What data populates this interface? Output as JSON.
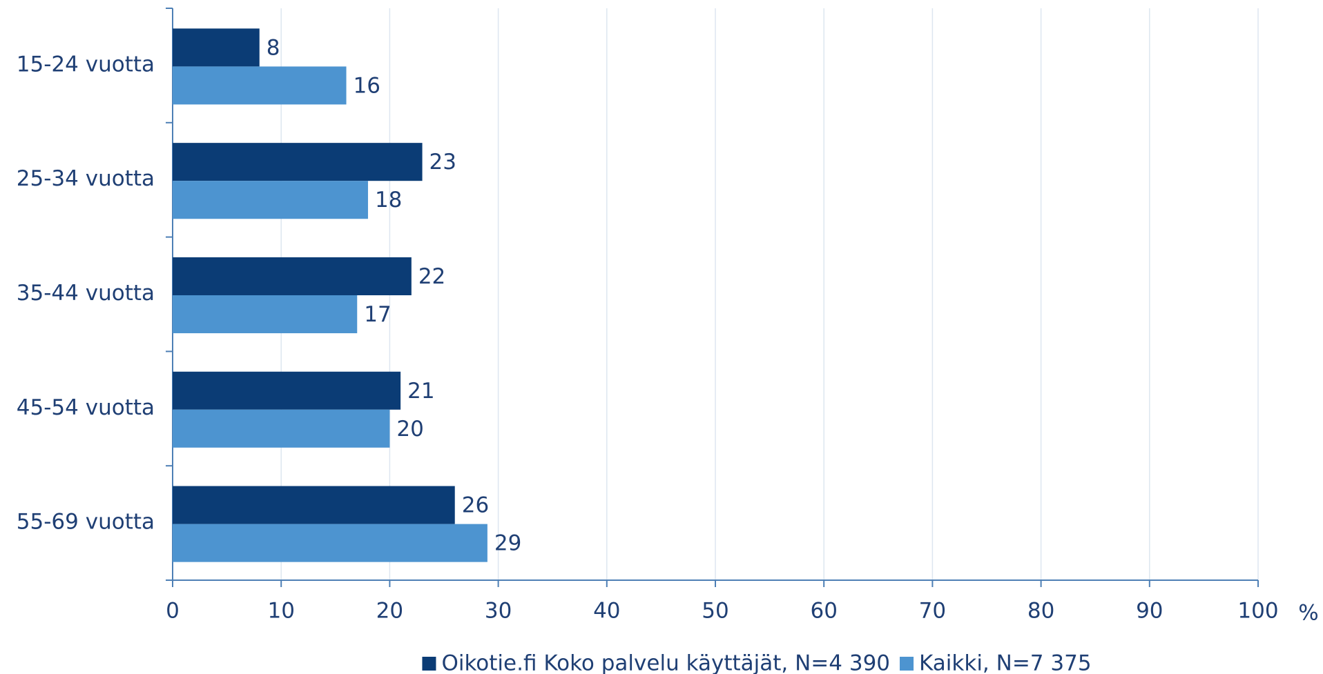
{
  "chart_data": {
    "type": "hbar",
    "categories": [
      "15-24 vuotta",
      "25-34 vuotta",
      "35-44 vuotta",
      "45-54 vuotta",
      "55-69 vuotta"
    ],
    "series": [
      {
        "name": "Oikotie.fi Koko palvelu käyttäjät, N=4 390",
        "color": "#0b3c75",
        "values": [
          8,
          23,
          22,
          21,
          26
        ]
      },
      {
        "name": "Kaikki, N=7 375",
        "color": "#4d94d0",
        "values": [
          16,
          18,
          17,
          20,
          29
        ]
      }
    ],
    "xlabel": "%",
    "xlim": [
      0,
      100
    ],
    "xticks": [
      0,
      10,
      20,
      30,
      40,
      50,
      60,
      70,
      80,
      90,
      100
    ],
    "grid": true,
    "legend": "bottom"
  }
}
